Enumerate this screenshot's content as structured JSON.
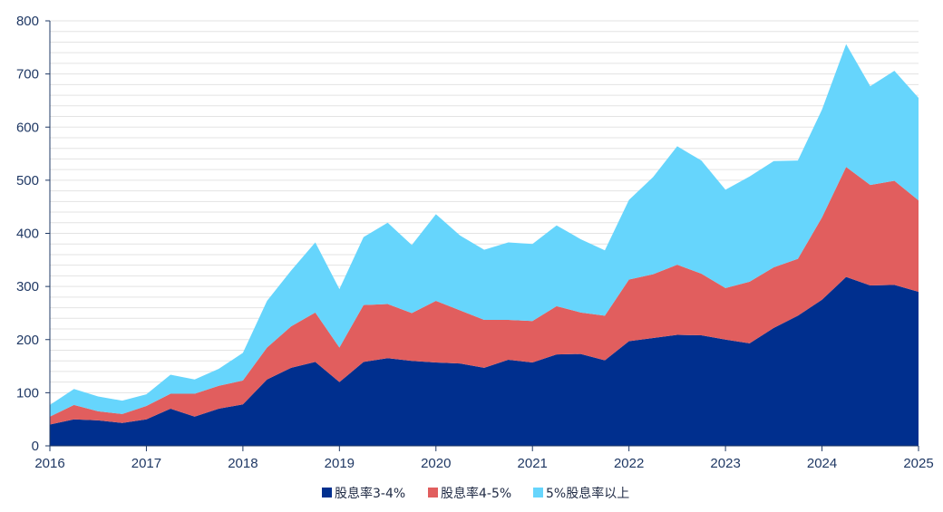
{
  "chart_data": {
    "type": "area",
    "stacked": true,
    "xlim": [
      2016,
      2025
    ],
    "ylim": [
      0,
      800
    ],
    "x_ticks": [
      "2016",
      "2017",
      "2018",
      "2019",
      "2020",
      "2021",
      "2022",
      "2023",
      "2024",
      "2025"
    ],
    "y_ticks": [
      "0",
      "100",
      "200",
      "300",
      "400",
      "500",
      "600",
      "700",
      "800"
    ],
    "grid": true,
    "legend_position": "bottom",
    "x": [
      2016,
      2016.25,
      2016.5,
      2016.75,
      2017,
      2017.25,
      2017.5,
      2017.75,
      2018,
      2018.25,
      2018.5,
      2018.75,
      2019,
      2019.25,
      2019.5,
      2019.75,
      2020,
      2020.25,
      2020.5,
      2020.75,
      2021,
      2021.25,
      2021.5,
      2021.75,
      2022,
      2022.25,
      2022.5,
      2022.75,
      2023,
      2023.25,
      2023.5,
      2023.75,
      2024,
      2024.25,
      2024.5,
      2024.75,
      2025
    ],
    "series": [
      {
        "name": "股息率3-4%",
        "color": "#002f8e",
        "values": [
          40,
          50,
          48,
          43,
          50,
          70,
          55,
          70,
          78,
          125,
          147,
          158,
          120,
          158,
          165,
          160,
          157,
          155,
          147,
          162,
          157,
          172,
          173,
          161,
          197,
          203,
          209,
          208,
          200,
          193,
          222,
          245,
          275,
          318,
          302,
          303,
          290
        ]
      },
      {
        "name": "股息率4-5%",
        "color": "#e15e5e",
        "values": [
          15,
          27,
          17,
          17,
          25,
          28,
          43,
          43,
          45,
          60,
          78,
          93,
          65,
          107,
          102,
          90,
          116,
          100,
          90,
          75,
          78,
          91,
          78,
          84,
          116,
          120,
          132,
          116,
          97,
          116,
          114,
          107,
          155,
          207,
          189,
          196,
          172
        ]
      },
      {
        "name": "5%股息率以上",
        "color": "#66d5fc",
        "values": [
          22,
          30,
          28,
          25,
          22,
          36,
          27,
          32,
          52,
          88,
          105,
          132,
          110,
          128,
          153,
          128,
          163,
          141,
          132,
          146,
          145,
          152,
          138,
          123,
          150,
          183,
          223,
          213,
          185,
          198,
          200,
          185,
          203,
          231,
          186,
          207,
          193
        ]
      }
    ]
  }
}
